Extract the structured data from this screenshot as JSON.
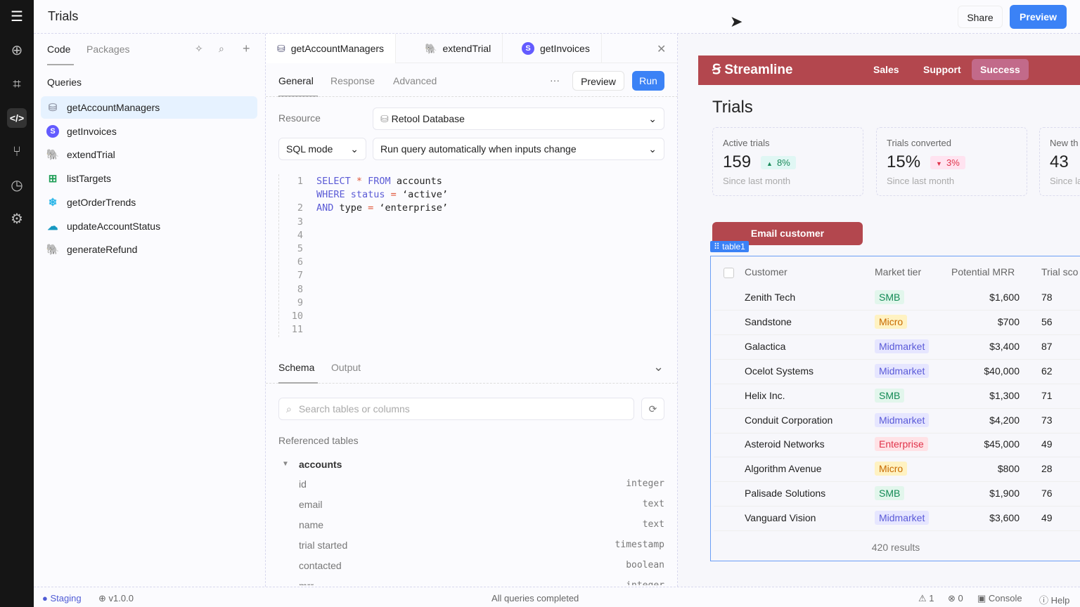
{
  "app": {
    "title": "Trials",
    "share": "Share",
    "preview": "Preview"
  },
  "left": {
    "tabs": [
      "Code",
      "Packages"
    ],
    "section": "Queries",
    "queries": [
      {
        "name": "getAccountManagers",
        "icon": "database-icon",
        "color": "#9aa0b0"
      },
      {
        "name": "getInvoices",
        "icon": "stripe-icon",
        "color": "#635bff"
      },
      {
        "name": "extendTrial",
        "icon": "postgres-icon",
        "color": "#336791"
      },
      {
        "name": "listTargets",
        "icon": "sheets-icon",
        "color": "#1e9e56"
      },
      {
        "name": "getOrderTrends",
        "icon": "snowflake-icon",
        "color": "#29b5e8"
      },
      {
        "name": "updateAccountStatus",
        "icon": "salesforce-icon",
        "color": "#1798c1"
      },
      {
        "name": "generateRefund",
        "icon": "postgres-icon",
        "color": "#336791"
      }
    ]
  },
  "editor": {
    "tabs": [
      {
        "name": "getAccountManagers",
        "icon": "database-icon"
      },
      {
        "name": "extendTrial",
        "icon": "postgres-icon"
      },
      {
        "name": "getInvoices",
        "icon": "stripe-icon"
      }
    ],
    "subtabs": [
      "General",
      "Response",
      "Advanced"
    ],
    "more": "···",
    "preview": "Preview",
    "run": "Run",
    "resource_label": "Resource",
    "resource": "Retool Database",
    "mode": "SQL mode",
    "trigger": "Run query automatically when inputs change",
    "line_numbers": [
      "1",
      "",
      "2",
      "3",
      "4",
      "5",
      "6",
      "7",
      "8",
      "9",
      "10",
      "11"
    ],
    "code": [
      [
        "SELECT",
        " * ",
        "FROM",
        " accounts"
      ],
      [
        "WHERE",
        " status",
        " = ",
        "‘active’"
      ],
      [
        "AND",
        " type",
        " = ",
        "‘enterprise’"
      ]
    ],
    "bottom_tabs": [
      "Schema",
      "Output"
    ],
    "search_placeholder": "Search tables or columns",
    "referenced": "Referenced tables",
    "table": "accounts",
    "columns": [
      [
        "id",
        "integer"
      ],
      [
        "email",
        "text"
      ],
      [
        "name",
        "text"
      ],
      [
        "trial started",
        "timestamp"
      ],
      [
        "contacted",
        "boolean"
      ],
      [
        "mrr",
        "integer"
      ]
    ]
  },
  "preview": {
    "brand": "Streamline",
    "nav": [
      "Sales",
      "Support",
      "Success"
    ],
    "active_nav": "Success",
    "brand_color": "#b3474e",
    "title": "Trials",
    "stats": [
      {
        "label": "Active trials",
        "value": "159",
        "delta": "8%",
        "dir": "up",
        "sub": "Since last month"
      },
      {
        "label": "Trials converted",
        "value": "15%",
        "delta": "3%",
        "dir": "down",
        "sub": "Since last month"
      },
      {
        "label": "New th",
        "value": "43",
        "delta": "",
        "dir": "",
        "sub": "Since la"
      }
    ],
    "email_button": "Email customer",
    "table_tag": "table1",
    "headers": [
      "Customer",
      "Market tier",
      "Potential MRR",
      "Trial sco"
    ],
    "rows": [
      [
        "Zenith Tech",
        "SMB",
        "$1,600",
        "78"
      ],
      [
        "Sandstone",
        "Micro",
        "$700",
        "56"
      ],
      [
        "Galactica",
        "Midmarket",
        "$3,400",
        "87"
      ],
      [
        "Ocelot Systems",
        "Midmarket",
        "$40,000",
        "62"
      ],
      [
        "Helix Inc.",
        "SMB",
        "$1,300",
        "71"
      ],
      [
        "Conduit Corporation",
        "Midmarket",
        "$4,200",
        "73"
      ],
      [
        "Asteroid Networks",
        "Enterprise",
        "$45,000",
        "49"
      ],
      [
        "Algorithm Avenue",
        "Micro",
        "$800",
        "28"
      ],
      [
        "Palisade Solutions",
        "SMB",
        "$1,900",
        "76"
      ],
      [
        "Vanguard Vision",
        "Midmarket",
        "$3,600",
        "49"
      ]
    ],
    "tier_colors": {
      "SMB": [
        "#e2f6ec",
        "#138a55"
      ],
      "Micro": [
        "#fff2c2",
        "#c86a00"
      ],
      "Midmarket": [
        "#e6e6ff",
        "#5a5ad8"
      ],
      "Enterprise": [
        "#ffe2e6",
        "#e0334a"
      ]
    },
    "results": "420 results"
  },
  "status": {
    "env": "Staging",
    "version": "v1.0.0",
    "message": "All queries completed",
    "warnings": "1",
    "errors": "0",
    "console": "Console",
    "help": "Help"
  }
}
